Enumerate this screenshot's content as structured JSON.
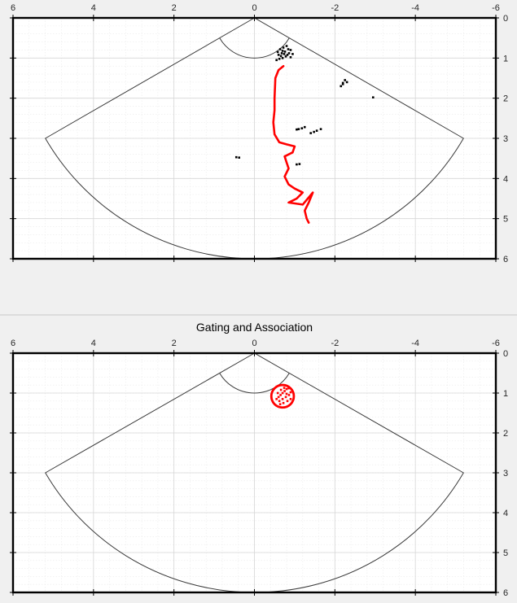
{
  "figure": {
    "background": "#f0f0f0",
    "separator_color": "#c8c8c8"
  },
  "chart_data": [
    {
      "type": "scatter",
      "title": "",
      "xlabel": "",
      "ylabel": "",
      "xlim": [
        6,
        -6
      ],
      "ylim": [
        6,
        0
      ],
      "x_reversed": true,
      "y_reversed": true,
      "grid": true,
      "minor_grid": true,
      "xticks": [
        "6",
        "4",
        "2",
        "0",
        "-2",
        "-4",
        "-6"
      ],
      "yticks": [
        "0",
        "1",
        "2",
        "3",
        "4",
        "5",
        "6"
      ],
      "sector": {
        "apex": [
          0,
          0
        ],
        "outer_radius": 6,
        "inner_radius": 1,
        "half_angle_deg": 60
      },
      "series": [
        {
          "kind": "path",
          "color": "#ff0000",
          "points": [
            [
              -0.72,
              1.2
            ],
            [
              -0.6,
              1.3
            ],
            [
              -0.52,
              1.5
            ],
            [
              -0.51,
              1.75
            ],
            [
              -0.5,
              2.0
            ],
            [
              -0.5,
              2.3
            ],
            [
              -0.47,
              2.6
            ],
            [
              -0.5,
              2.9
            ],
            [
              -0.62,
              3.1
            ],
            [
              -0.8,
              3.15
            ],
            [
              -1.0,
              3.2
            ],
            [
              -0.95,
              3.35
            ],
            [
              -0.75,
              3.45
            ],
            [
              -0.8,
              3.6
            ],
            [
              -0.85,
              3.75
            ],
            [
              -0.75,
              3.95
            ],
            [
              -0.85,
              4.15
            ],
            [
              -1.0,
              4.25
            ],
            [
              -1.2,
              4.35
            ],
            [
              -1.05,
              4.5
            ],
            [
              -0.85,
              4.6
            ],
            [
              -1.2,
              4.65
            ],
            [
              -1.45,
              4.35
            ],
            [
              -1.35,
              4.6
            ],
            [
              -1.25,
              4.8
            ],
            [
              -1.3,
              5.0
            ],
            [
              -1.35,
              5.1
            ]
          ]
        },
        {
          "kind": "points",
          "color": "#000000",
          "points": [
            [
              -0.55,
              1.05
            ],
            [
              -0.62,
              1.02
            ],
            [
              -0.7,
              1.0
            ],
            [
              -0.78,
              0.96
            ],
            [
              -0.86,
              0.88
            ],
            [
              -0.9,
              0.8
            ],
            [
              -0.6,
              0.92
            ],
            [
              -0.68,
              0.88
            ],
            [
              -0.76,
              0.84
            ],
            [
              -0.84,
              0.78
            ],
            [
              -0.64,
              0.78
            ],
            [
              -0.72,
              0.74
            ],
            [
              -0.8,
              0.7
            ],
            [
              -0.58,
              0.85
            ],
            [
              -0.66,
              0.95
            ],
            [
              -0.74,
              0.9
            ],
            [
              -0.82,
              0.92
            ],
            [
              -0.9,
              0.98
            ],
            [
              -0.95,
              0.9
            ],
            [
              -0.7,
              0.82
            ],
            [
              -2.25,
              1.55
            ],
            [
              -2.3,
              1.6
            ],
            [
              -2.2,
              1.65
            ],
            [
              -2.15,
              1.7
            ],
            [
              -2.2,
              1.62
            ],
            [
              -2.95,
              1.98
            ],
            [
              -1.05,
              2.78
            ],
            [
              -1.1,
              2.77
            ],
            [
              -1.18,
              2.75
            ],
            [
              -1.25,
              2.72
            ],
            [
              -1.4,
              2.87
            ],
            [
              -1.48,
              2.84
            ],
            [
              -1.55,
              2.81
            ],
            [
              -1.65,
              2.77
            ],
            [
              -1.05,
              3.65
            ],
            [
              -1.12,
              3.64
            ],
            [
              0.45,
              3.47
            ],
            [
              0.38,
              3.48
            ]
          ]
        }
      ]
    },
    {
      "type": "scatter",
      "title": "Gating and Association",
      "xlabel": "",
      "ylabel": "",
      "xlim": [
        6,
        -6
      ],
      "ylim": [
        6,
        0
      ],
      "x_reversed": true,
      "y_reversed": true,
      "grid": true,
      "minor_grid": true,
      "xticks": [
        "6",
        "4",
        "2",
        "0",
        "-2",
        "-4",
        "-6"
      ],
      "yticks": [
        "0",
        "1",
        "2",
        "3",
        "4",
        "5",
        "6"
      ],
      "sector": {
        "apex": [
          0,
          0
        ],
        "outer_radius": 6,
        "inner_radius": 1,
        "half_angle_deg": 60
      },
      "gate": {
        "center": [
          -0.7,
          1.08
        ],
        "radius": 0.28,
        "color": "#ff0000"
      },
      "series": [
        {
          "kind": "points",
          "color": "#ff0000",
          "points": [
            [
              -0.55,
              1.15
            ],
            [
              -0.6,
              1.1
            ],
            [
              -0.65,
              1.05
            ],
            [
              -0.7,
              1.0
            ],
            [
              -0.75,
              0.95
            ],
            [
              -0.8,
              0.9
            ],
            [
              -0.85,
              0.88
            ],
            [
              -0.62,
              1.2
            ],
            [
              -0.7,
              1.15
            ],
            [
              -0.78,
              1.1
            ],
            [
              -0.86,
              1.05
            ],
            [
              -0.9,
              0.98
            ],
            [
              -0.58,
              1.0
            ],
            [
              -0.66,
              0.92
            ],
            [
              -0.74,
              0.87
            ],
            [
              -0.82,
              1.2
            ],
            [
              -0.9,
              1.15
            ],
            [
              -0.72,
              1.25
            ],
            [
              -0.64,
              1.28
            ],
            [
              -0.8,
              1.02
            ]
          ]
        }
      ]
    }
  ]
}
